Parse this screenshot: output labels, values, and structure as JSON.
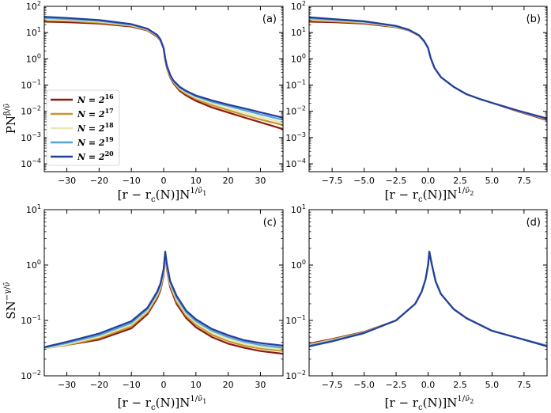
{
  "legend": {
    "entries": [
      {
        "label": "N = 2",
        "exp": "16",
        "color": "#8b1a0e"
      },
      {
        "label": "N = 2",
        "exp": "17",
        "color": "#c8962c"
      },
      {
        "label": "N = 2",
        "exp": "18",
        "color": "#e8e8b6"
      },
      {
        "label": "N = 2",
        "exp": "19",
        "color": "#58a3cf"
      },
      {
        "label": "N = 2",
        "exp": "20",
        "color": "#233f9e"
      }
    ],
    "placement": "left-lower, panel (a)"
  },
  "labels": {
    "ylabel_top": {
      "base": "PN",
      "sup": "β/ν̄"
    },
    "ylabel_bottom": {
      "base": "SN",
      "sup": "−γ/ν̄"
    },
    "xlabel_left": {
      "base": "[r − r",
      "sub": "c",
      "mid": "(N)]N",
      "sup": "1/ν̄",
      "supsub": "1"
    },
    "xlabel_right": {
      "base": "[r − r",
      "sub": "c",
      "mid": "(N)]N",
      "sup": "1/ν̄",
      "supsub": "2"
    }
  },
  "chart_data": [
    {
      "panel": "(a)",
      "type": "line",
      "y_scale": "log",
      "xlim": [
        -37,
        37
      ],
      "ylim": [
        5e-05,
        100
      ],
      "xticks": [
        -30,
        -20,
        -10,
        0,
        10,
        20,
        30
      ],
      "xtick_labels": [
        "−30",
        "−20",
        "−10",
        "0",
        "10",
        "20",
        "30"
      ],
      "yticks": [
        0.0001,
        0.001,
        0.01,
        0.1,
        1,
        10,
        100
      ],
      "ytick_labels": [
        [
          "10",
          "−4"
        ],
        [
          "10",
          "−3"
        ],
        [
          "10",
          "−2"
        ],
        [
          "10",
          "−1"
        ],
        [
          "10",
          "0"
        ],
        [
          "10",
          "1"
        ],
        [
          "10",
          "2"
        ]
      ],
      "series": [
        {
          "x": [
            -37,
            -30,
            -20,
            -10,
            -5,
            -2,
            -1,
            0,
            0.5,
            1,
            2,
            3,
            5,
            7,
            10,
            15,
            20,
            25,
            30,
            37
          ],
          "y": [
            26,
            25,
            22,
            17,
            12,
            7,
            5,
            2.5,
            0.9,
            0.45,
            0.2,
            0.12,
            0.06,
            0.04,
            0.025,
            0.014,
            0.009,
            0.0058,
            0.0038,
            0.0021
          ]
        },
        {
          "x": [
            -37,
            -30,
            -20,
            -10,
            -5,
            -2,
            -1,
            0,
            0.5,
            1,
            2,
            3,
            5,
            7,
            10,
            15,
            20,
            25,
            30,
            37
          ],
          "y": [
            29,
            28,
            24,
            18,
            12.5,
            7.5,
            5.2,
            2.5,
            0.95,
            0.48,
            0.22,
            0.13,
            0.068,
            0.046,
            0.029,
            0.017,
            0.011,
            0.0072,
            0.0049,
            0.003
          ]
        },
        {
          "x": [
            -37,
            -30,
            -20,
            -10,
            -5,
            -2,
            -1,
            0,
            0.5,
            1,
            2,
            3,
            5,
            7,
            10,
            15,
            20,
            25,
            30,
            37
          ],
          "y": [
            32,
            30,
            26,
            19,
            13,
            7.8,
            5.3,
            2.5,
            1.0,
            0.5,
            0.23,
            0.14,
            0.074,
            0.051,
            0.033,
            0.02,
            0.013,
            0.0088,
            0.0061,
            0.0037
          ]
        },
        {
          "x": [
            -37,
            -30,
            -20,
            -10,
            -5,
            -2,
            -1,
            0,
            0.5,
            1,
            2,
            3,
            5,
            7,
            10,
            15,
            20,
            25,
            30,
            37
          ],
          "y": [
            36,
            33,
            28,
            20,
            13.5,
            8,
            5.4,
            2.5,
            1.02,
            0.52,
            0.24,
            0.145,
            0.08,
            0.056,
            0.037,
            0.023,
            0.016,
            0.011,
            0.0076,
            0.0047
          ]
        },
        {
          "x": [
            -37,
            -30,
            -20,
            -10,
            -5,
            -2,
            -1,
            0,
            0.5,
            1,
            2,
            3,
            5,
            7,
            10,
            15,
            20,
            25,
            30,
            37
          ],
          "y": [
            40,
            36,
            30,
            21,
            14,
            8.2,
            5.5,
            2.5,
            1.05,
            0.55,
            0.25,
            0.15,
            0.085,
            0.06,
            0.04,
            0.026,
            0.018,
            0.013,
            0.0092,
            0.0057
          ]
        }
      ]
    },
    {
      "panel": "(b)",
      "type": "line",
      "y_scale": "log",
      "xlim": [
        -9.3,
        9.3
      ],
      "ylim": [
        5e-05,
        100
      ],
      "xticks": [
        -7.5,
        -5.0,
        -2.5,
        0.0,
        2.5,
        5.0,
        7.5
      ],
      "xtick_labels": [
        "−7.5",
        "−5.0",
        "−2.5",
        "0.0",
        "2.5",
        "5.0",
        "7.5"
      ],
      "yticks": [
        0.0001,
        0.001,
        0.01,
        0.1,
        1,
        10,
        100
      ],
      "ytick_labels": [
        [
          "10",
          "−4"
        ],
        [
          "10",
          "−3"
        ],
        [
          "10",
          "−2"
        ],
        [
          "10",
          "−1"
        ],
        [
          "10",
          "0"
        ],
        [
          "10",
          "1"
        ],
        [
          "10",
          "2"
        ]
      ],
      "series": [
        {
          "x": [
            -9.3,
            -7.5,
            -5,
            -2.5,
            -1.5,
            -0.7,
            -0.3,
            0,
            0.2,
            0.5,
            1,
            2,
            3,
            4,
            5,
            6,
            7,
            8,
            9.3
          ],
          "y": [
            26,
            25,
            22,
            16,
            12,
            7.5,
            4.5,
            2.6,
            1.1,
            0.45,
            0.2,
            0.085,
            0.045,
            0.03,
            0.021,
            0.0145,
            0.01,
            0.0072,
            0.0046
          ]
        },
        {
          "x": [
            -9.3,
            -7.5,
            -5,
            -2.5,
            -1.5,
            -0.7,
            -0.3,
            0,
            0.2,
            0.5,
            1,
            2,
            3,
            4,
            5,
            6,
            7,
            8,
            9.3
          ],
          "y": [
            29,
            27,
            23.5,
            16.5,
            12.2,
            7.6,
            4.6,
            2.6,
            1.1,
            0.45,
            0.2,
            0.085,
            0.045,
            0.03,
            0.021,
            0.0148,
            0.0103,
            0.0075,
            0.0049
          ]
        },
        {
          "x": [
            -9.3,
            -7.5,
            -5,
            -2.5,
            -1.5,
            -0.7,
            -0.3,
            0,
            0.2,
            0.5,
            1,
            2,
            3,
            4,
            5,
            6,
            7,
            8,
            9.3
          ],
          "y": [
            32,
            29,
            25,
            17,
            12.4,
            7.7,
            4.6,
            2.6,
            1.1,
            0.45,
            0.2,
            0.085,
            0.045,
            0.03,
            0.021,
            0.015,
            0.0105,
            0.0077,
            0.0051
          ]
        },
        {
          "x": [
            -9.3,
            -7.5,
            -5,
            -2.5,
            -1.5,
            -0.7,
            -0.3,
            0,
            0.2,
            0.5,
            1,
            2,
            3,
            4,
            5,
            6,
            7,
            8,
            9.3
          ],
          "y": [
            35,
            31,
            26,
            17.5,
            12.6,
            7.8,
            4.7,
            2.6,
            1.1,
            0.45,
            0.2,
            0.085,
            0.045,
            0.03,
            0.021,
            0.015,
            0.0106,
            0.0078,
            0.0052
          ]
        },
        {
          "x": [
            -9.3,
            -7.5,
            -5,
            -2.5,
            -1.5,
            -0.7,
            -0.3,
            0,
            0.2,
            0.5,
            1,
            2,
            3,
            4,
            5,
            6,
            7,
            8,
            9.3
          ],
          "y": [
            38,
            33,
            27,
            18,
            12.8,
            7.9,
            4.7,
            2.6,
            1.1,
            0.45,
            0.2,
            0.085,
            0.045,
            0.03,
            0.021,
            0.015,
            0.0107,
            0.0079,
            0.0053
          ]
        }
      ]
    },
    {
      "panel": "(c)",
      "type": "line",
      "y_scale": "log",
      "xlim": [
        -37,
        37
      ],
      "ylim": [
        0.01,
        10
      ],
      "xticks": [
        -30,
        -20,
        -10,
        0,
        10,
        20,
        30
      ],
      "xtick_labels": [
        "−30",
        "−20",
        "−10",
        "0",
        "10",
        "20",
        "30"
      ],
      "yticks": [
        0.01,
        0.1,
        1,
        10
      ],
      "ytick_labels": [
        [
          "10",
          "−2"
        ],
        [
          "10",
          "−1"
        ],
        [
          "10",
          "0"
        ],
        [
          "10",
          "1"
        ]
      ],
      "series": [
        {
          "x": [
            -37,
            -30,
            -20,
            -10,
            -5,
            -2,
            -1,
            0,
            0.5,
            1,
            2,
            4,
            7,
            10,
            15,
            20,
            25,
            30,
            37
          ],
          "y": [
            0.032,
            0.036,
            0.045,
            0.072,
            0.13,
            0.25,
            0.35,
            0.65,
            1.55,
            0.85,
            0.4,
            0.2,
            0.11,
            0.075,
            0.05,
            0.038,
            0.032,
            0.028,
            0.025
          ]
        },
        {
          "x": [
            -37,
            -30,
            -20,
            -10,
            -5,
            -2,
            -1,
            0,
            0.5,
            1,
            2,
            4,
            7,
            10,
            15,
            20,
            25,
            30,
            37
          ],
          "y": [
            0.031,
            0.036,
            0.048,
            0.078,
            0.14,
            0.27,
            0.38,
            0.7,
            1.6,
            0.9,
            0.43,
            0.22,
            0.12,
            0.083,
            0.055,
            0.042,
            0.035,
            0.031,
            0.028
          ]
        },
        {
          "x": [
            -37,
            -30,
            -20,
            -10,
            -5,
            -2,
            -1,
            0,
            0.5,
            1,
            2,
            4,
            7,
            10,
            15,
            20,
            25,
            30,
            37
          ],
          "y": [
            0.031,
            0.037,
            0.051,
            0.084,
            0.15,
            0.29,
            0.4,
            0.75,
            1.65,
            0.95,
            0.46,
            0.24,
            0.13,
            0.09,
            0.06,
            0.046,
            0.038,
            0.033,
            0.03
          ]
        },
        {
          "x": [
            -37,
            -30,
            -20,
            -10,
            -5,
            -2,
            -1,
            0,
            0.5,
            1,
            2,
            4,
            7,
            10,
            15,
            20,
            25,
            30,
            37
          ],
          "y": [
            0.032,
            0.039,
            0.054,
            0.09,
            0.16,
            0.31,
            0.43,
            0.8,
            1.7,
            1.0,
            0.49,
            0.26,
            0.14,
            0.097,
            0.065,
            0.05,
            0.041,
            0.036,
            0.032
          ]
        },
        {
          "x": [
            -37,
            -30,
            -20,
            -10,
            -5,
            -2,
            -1,
            0,
            0.5,
            1,
            2,
            4,
            7,
            10,
            15,
            20,
            25,
            30,
            37
          ],
          "y": [
            0.033,
            0.041,
            0.058,
            0.097,
            0.17,
            0.33,
            0.46,
            0.85,
            1.75,
            1.05,
            0.52,
            0.28,
            0.15,
            0.105,
            0.07,
            0.054,
            0.044,
            0.039,
            0.035
          ]
        }
      ]
    },
    {
      "panel": "(d)",
      "type": "line",
      "y_scale": "log",
      "xlim": [
        -9.3,
        9.3
      ],
      "ylim": [
        0.01,
        10
      ],
      "xticks": [
        -7.5,
        -5.0,
        -2.5,
        0.0,
        2.5,
        5.0,
        7.5
      ],
      "xtick_labels": [
        "−7.5",
        "−5.0",
        "−2.5",
        "0.0",
        "2.5",
        "5.0",
        "7.5"
      ],
      "yticks": [
        0.01,
        0.1,
        1,
        10
      ],
      "ytick_labels": [
        [
          "10",
          "−2"
        ],
        [
          "10",
          "−1"
        ],
        [
          "10",
          "0"
        ],
        [
          "10",
          "1"
        ]
      ],
      "series": [
        {
          "x": [
            -9.3,
            -7.5,
            -5,
            -2.5,
            -1,
            -0.5,
            -0.2,
            0,
            0.1,
            0.3,
            0.6,
            1,
            2,
            3,
            5,
            7.5,
            9.3
          ],
          "y": [
            0.038,
            0.046,
            0.062,
            0.1,
            0.2,
            0.33,
            0.55,
            1.0,
            1.75,
            1.0,
            0.5,
            0.3,
            0.16,
            0.11,
            0.065,
            0.045,
            0.035
          ]
        },
        {
          "x": [
            -9.3,
            -7.5,
            -5,
            -2.5,
            -1,
            -0.5,
            -0.2,
            0,
            0.1,
            0.3,
            0.6,
            1,
            2,
            3,
            5,
            7.5,
            9.3
          ],
          "y": [
            0.037,
            0.045,
            0.061,
            0.1,
            0.2,
            0.33,
            0.55,
            1.0,
            1.75,
            1.0,
            0.5,
            0.3,
            0.16,
            0.11,
            0.065,
            0.045,
            0.035
          ]
        },
        {
          "x": [
            -9.3,
            -7.5,
            -5,
            -2.5,
            -1,
            -0.5,
            -0.2,
            0,
            0.1,
            0.3,
            0.6,
            1,
            2,
            3,
            5,
            7.5,
            9.3
          ],
          "y": [
            0.036,
            0.044,
            0.06,
            0.1,
            0.2,
            0.33,
            0.55,
            1.0,
            1.75,
            1.0,
            0.5,
            0.3,
            0.16,
            0.11,
            0.065,
            0.045,
            0.035
          ]
        },
        {
          "x": [
            -9.3,
            -7.5,
            -5,
            -2.5,
            -1,
            -0.5,
            -0.2,
            0,
            0.1,
            0.3,
            0.6,
            1,
            2,
            3,
            5,
            7.5,
            9.3
          ],
          "y": [
            0.035,
            0.043,
            0.06,
            0.1,
            0.2,
            0.33,
            0.55,
            1.0,
            1.75,
            1.0,
            0.5,
            0.3,
            0.16,
            0.11,
            0.065,
            0.045,
            0.035
          ]
        },
        {
          "x": [
            -9.3,
            -7.5,
            -5,
            -2.5,
            -1,
            -0.5,
            -0.2,
            0,
            0.1,
            0.3,
            0.6,
            1,
            2,
            3,
            5,
            7.5,
            9.3
          ],
          "y": [
            0.034,
            0.042,
            0.059,
            0.1,
            0.2,
            0.33,
            0.55,
            1.0,
            1.75,
            1.0,
            0.5,
            0.3,
            0.16,
            0.11,
            0.065,
            0.045,
            0.034
          ]
        }
      ]
    }
  ]
}
